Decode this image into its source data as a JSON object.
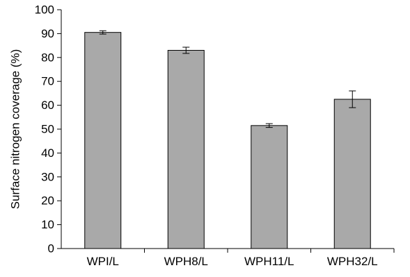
{
  "chart_data": {
    "type": "bar",
    "title": "",
    "xlabel": "",
    "ylabel": "Surface nitrogen coverage (%)",
    "categories": [
      "WPI/L",
      "WPH8/L",
      "WPH11/L",
      "WPH32/L"
    ],
    "values": [
      90.5,
      83.0,
      51.5,
      62.5
    ],
    "error": [
      0.7,
      1.3,
      0.8,
      3.5
    ],
    "ylim": [
      0,
      100
    ],
    "yticks": [
      0,
      10,
      20,
      30,
      40,
      50,
      60,
      70,
      80,
      90,
      100
    ],
    "grid": false,
    "legend": "none",
    "colors": {
      "bar_fill": "#a9a9a9",
      "bar_stroke": "#000000",
      "axis": "#000000"
    }
  }
}
